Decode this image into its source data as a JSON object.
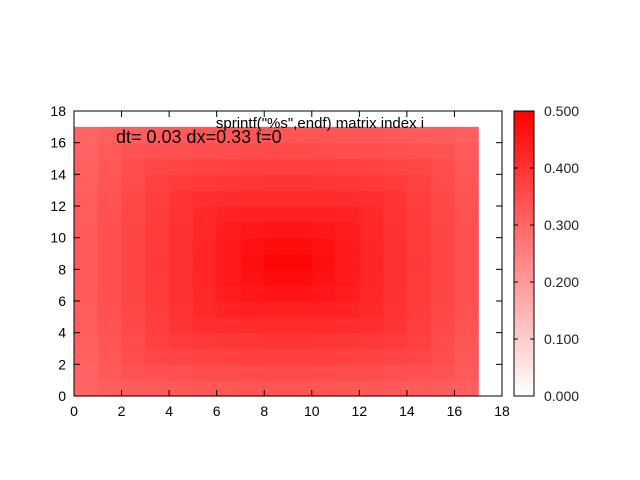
{
  "chart_data": {
    "type": "heatmap",
    "key_label": "sprintf(\"%s\",endf) matrix index i",
    "annotation": "dt= 0.03 dx=0.33 t=0",
    "xlim": [
      0,
      18
    ],
    "ylim": [
      0,
      18
    ],
    "x_ticks": [
      "0",
      "2",
      "4",
      "6",
      "8",
      "10",
      "12",
      "14",
      "16",
      "18"
    ],
    "y_ticks": [
      "0",
      "2",
      "4",
      "6",
      "8",
      "10",
      "12",
      "14",
      "16",
      "18"
    ],
    "colorbar": {
      "range": [
        0,
        0.5
      ],
      "ticks": [
        "0.000",
        "0.100",
        "0.200",
        "0.300",
        "0.400",
        "0.500"
      ],
      "low_color": "#ffffff",
      "high_color": "#ff0000"
    },
    "grid_size": 17,
    "center": [
      9,
      8.5
    ],
    "peak_value": 0.5,
    "edge_value": 0.3
  }
}
